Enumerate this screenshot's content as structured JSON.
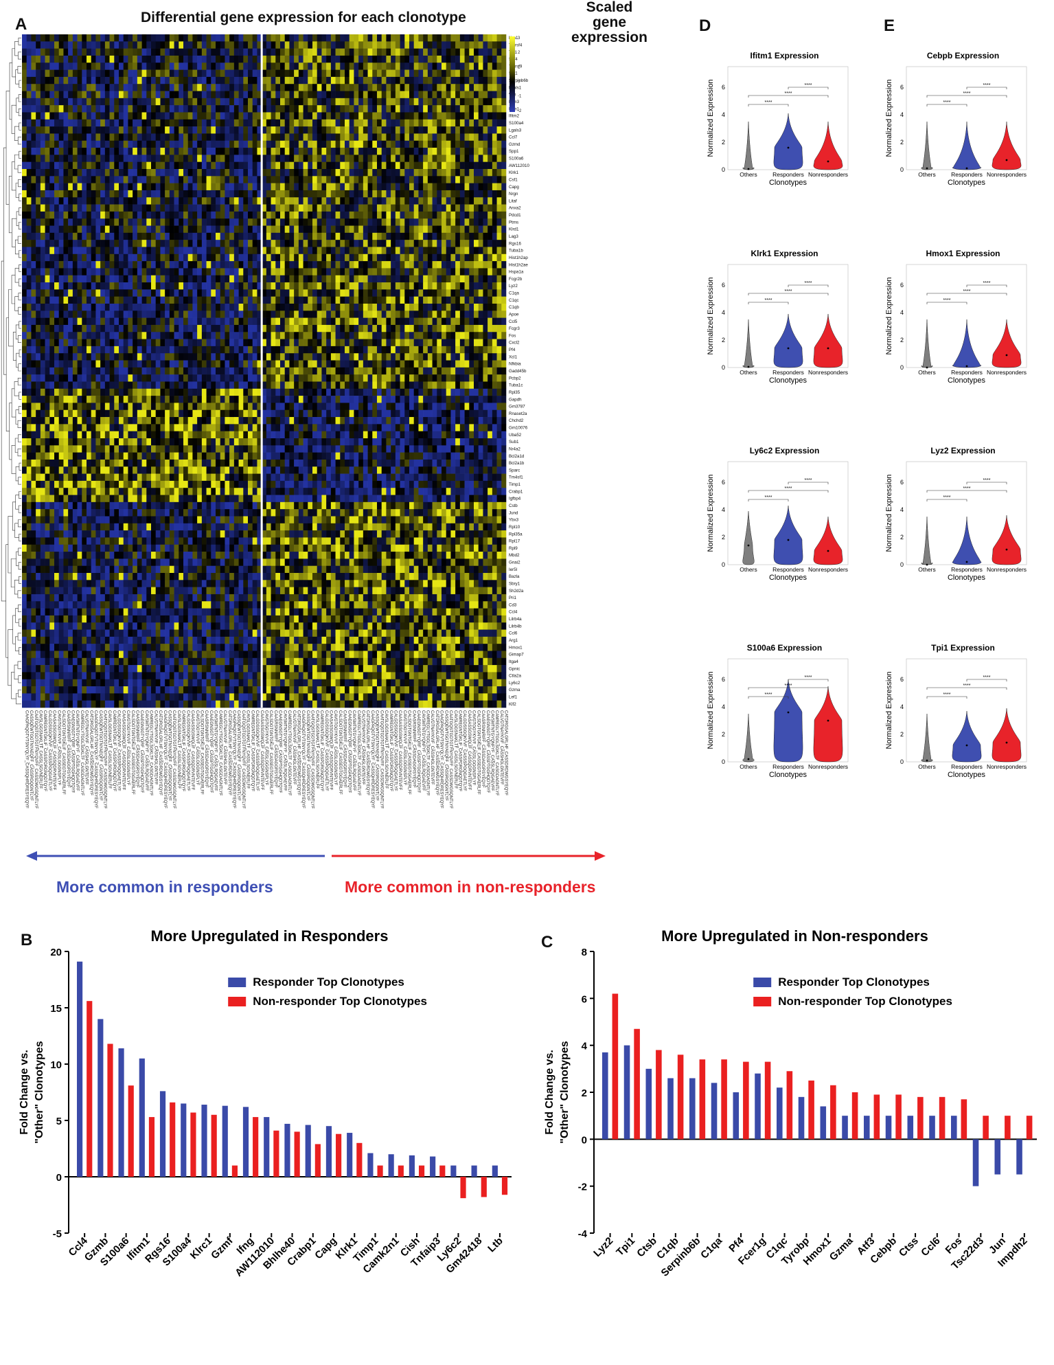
{
  "panel_letters": [
    "A",
    "B",
    "C",
    "D",
    "E"
  ],
  "heatmap": {
    "title": "Differential gene expression for each clonotype",
    "legend_title": "Scaled gene expression",
    "legend_ticks": [
      "3",
      "2",
      "1",
      "0",
      "-1",
      "-2"
    ],
    "genes": [
      "Nrn1",
      "Tnfrsf4",
      "Tpi1",
      "Sdf4",
      "Tnfrsf9",
      "Sat1",
      "Serpinb6b",
      "Lgals1",
      "Vim",
      "Ifitm3",
      "Ifitm1",
      "Ifitm2",
      "S100a4",
      "Lgals3",
      "Ccl7",
      "Gzmd",
      "Spp1",
      "S100a6",
      "AW112010",
      "Klrk1",
      "Csf1",
      "Capg",
      "Nrgn",
      "Litaf",
      "Anxa2",
      "Pdcd1",
      "Ptms",
      "Klrd1",
      "Lag3",
      "Rgs16",
      "Tuba1b",
      "Hist1h2ap",
      "Hist1h2ae",
      "Hspa1a",
      "Fcgr2b",
      "Lyz2",
      "C1qa",
      "C1qc",
      "C1qb",
      "Apoe",
      "Ccl5",
      "Fcgr3",
      "Fos",
      "Cxcl2",
      "Pf4",
      "Xcl1",
      "Nfkbia",
      "Gadd45b",
      "Pcbp2",
      "Tuba1c",
      "Rpl35",
      "Gapdh",
      "Gm3787",
      "Rnaset2a",
      "Chchd2",
      "Gm10076",
      "Uba52",
      "Sub1",
      "Nr4a2",
      "Bcl2a1d",
      "Bcl2a1b",
      "Sparc",
      "Tm4sf1",
      "Timp1",
      "Crabp1",
      "Igfbp4",
      "Cstb",
      "Jund",
      "Ybx3",
      "Rpl10",
      "Rpl35a",
      "Rpl17",
      "Rpl9",
      "Mbd2",
      "Gnai2",
      "Ier5l",
      "Bazla",
      "Sbry1",
      "Sh2d2a",
      "Pri1",
      "Cd3",
      "Ccl4",
      "Lilrb4a",
      "Lilrb4b",
      "Ccl6",
      "Arg1",
      "Hmox1",
      "Gimap7",
      "Itga4",
      "Gpnic",
      "Ctla2a",
      "Ly6c2",
      "Gzma",
      "Lef1",
      "Klf2"
    ],
    "column_samples": [
      "CAAGPAQGTVTSNYQLYF_CASSQHRDRESYEQYF",
      "CASSQEWTGGTNYAEQFF_CASSRGQGNTLYF",
      "CAATGQSTGDTGTFNYQVFF_CASSDWGSQNTLYF",
      "CAVSLGGSNAKLTF_CASSLSGVNERLFF",
      "CAMREGNTGKLIF_CASSPDRGNQDTQYF",
      "CALGDSSGQKVVF_CASSSPGQGAETLYF",
      "CAASASSGSWQLIF_CASSQDRVNTEVFF",
      "CAVGTGGYKVVF_CASSLGGGNSPLYF",
      "CALSDGTGNTGKLIF_CASSEGTGGAERLFF",
      "CAASRSNNRIFF_CASSDAGGRSYEQYF",
      "CAAEGNSGTYQRF_CASSPTGGHQDTQYF",
      "CAVSMTNTGYQNFYF_CASSLRQGAEVFF",
      "CAMREGLYTGGLSGKLTF_CASGDAGNTLYF",
      "CALVDTNAYKVIF_CASSHGLGNTEVFF",
      "CATDRGSALGRLHF_CASSDRDWGSYEQYF"
    ],
    "arrow_left": "More common in responders",
    "arrow_right": "More common in non-responders"
  },
  "violins": {
    "ylabel": "Normalized Expression",
    "xlabel": "Clonotypes",
    "groups": [
      "Others",
      "Responders",
      "Nonresponders"
    ],
    "sig": "****",
    "colors": {
      "Others": "#7f7f7f",
      "Responders": "#3f4fb0",
      "Nonresponders": "#e8232a"
    },
    "panels": [
      {
        "title": "Ifitm1 Expression",
        "ymax": 6,
        "ticks": [
          0,
          2,
          4,
          6
        ],
        "medians": [
          0.05,
          1.6,
          0.6
        ]
      },
      {
        "title": "Cebpb Expression",
        "ymax": 6,
        "ticks": [
          0,
          2,
          4,
          6
        ],
        "medians": [
          0.1,
          0.1,
          0.7
        ]
      },
      {
        "title": "Klrk1 Expression",
        "ymax": 6,
        "ticks": [
          0,
          2,
          4,
          6
        ],
        "medians": [
          0.05,
          1.4,
          1.4
        ]
      },
      {
        "title": "Hmox1 Expression",
        "ymax": 6,
        "ticks": [
          0,
          2,
          4,
          6
        ],
        "medians": [
          0.0,
          0.1,
          0.9
        ]
      },
      {
        "title": "Ly6c2 Expression",
        "ymax": 6,
        "ticks": [
          0,
          2,
          4,
          6
        ],
        "medians": [
          1.4,
          1.8,
          1.0
        ]
      },
      {
        "title": "Lyz2 Expression",
        "ymax": 6,
        "ticks": [
          0,
          2,
          4,
          6
        ],
        "medians": [
          0.0,
          0.2,
          1.1
        ]
      },
      {
        "title": "S100a6 Expression",
        "ymax": 6,
        "ticks": [
          0,
          2,
          4,
          6
        ],
        "medians": [
          0.2,
          3.6,
          3.0
        ]
      },
      {
        "title": "Tpi1 Expression",
        "ymax": 6,
        "ticks": [
          0,
          2,
          4,
          6
        ],
        "medians": [
          0.1,
          1.2,
          1.4
        ]
      }
    ]
  },
  "chart_data": [
    {
      "type": "bar",
      "title": "More Upregulated in Responders",
      "ylabel": "Fold Change vs. \"Other\" Clonotypes",
      "ylim": [
        -5,
        20
      ],
      "yticks": [
        -5,
        0,
        5,
        10,
        15,
        20
      ],
      "categories": [
        "Ccl4",
        "Gzmb",
        "S100a6",
        "Ifitm1",
        "Rgs16",
        "S100a4",
        "Klrc1",
        "Gzmf",
        "Ifng",
        "AW112010",
        "Bhlhe40",
        "Crabp1",
        "Capg",
        "Klrk1",
        "Timp1",
        "Camk2n1",
        "Cish",
        "Tnfaip3",
        "Ly6c2",
        "Gm42418",
        "Ltb"
      ],
      "series": [
        {
          "name": "Responder Top Clonotypes",
          "color": "#3a4aa8",
          "values": [
            19.1,
            14.0,
            11.4,
            10.5,
            7.6,
            6.5,
            6.4,
            6.3,
            6.2,
            5.3,
            4.7,
            4.6,
            4.5,
            3.9,
            2.1,
            2.0,
            1.9,
            1.8,
            1.0,
            1.0,
            1.0
          ]
        },
        {
          "name": "Non-responder Top Clonotypes",
          "color": "#ea2020",
          "values": [
            15.6,
            11.8,
            8.1,
            5.3,
            6.6,
            5.7,
            5.5,
            1.0,
            5.3,
            4.1,
            4.0,
            2.9,
            3.8,
            3.0,
            1.0,
            1.0,
            1.0,
            1.0,
            -1.9,
            -1.8,
            -1.6
          ]
        }
      ]
    },
    {
      "type": "bar",
      "title": "More Upregulated in Non-responders",
      "ylabel": "Fold Change vs. \"Other\" Clonotypes",
      "ylim": [
        -4,
        8
      ],
      "yticks": [
        -4,
        -2,
        0,
        2,
        4,
        6,
        8
      ],
      "categories": [
        "Lyz2",
        "Tpi1",
        "Ctsb",
        "C1qb",
        "Serpinb6b",
        "C1qa",
        "Pf4",
        "Fcer1g",
        "C1qc",
        "Tyrobp",
        "Hmox1",
        "Gzma",
        "Atf3",
        "Cebpb",
        "Ctss",
        "Ccl6",
        "Fos",
        "Tsc22d3",
        "Jun",
        "Impdh2"
      ],
      "series": [
        {
          "name": "Responder Top Clonotypes",
          "color": "#3a4aa8",
          "values": [
            3.7,
            4.0,
            3.0,
            2.6,
            2.6,
            2.4,
            2.0,
            2.8,
            2.2,
            1.8,
            1.4,
            1.0,
            1.0,
            1.0,
            1.0,
            1.0,
            1.0,
            -2.0,
            -1.5,
            -1.5
          ]
        },
        {
          "name": "Non-responder Top Clonotypes",
          "color": "#ea2020",
          "values": [
            6.2,
            4.7,
            3.8,
            3.6,
            3.4,
            3.4,
            3.3,
            3.3,
            2.9,
            2.5,
            2.3,
            2.0,
            1.9,
            1.9,
            1.8,
            1.8,
            1.7,
            1.0,
            1.0,
            1.0
          ]
        }
      ]
    }
  ]
}
